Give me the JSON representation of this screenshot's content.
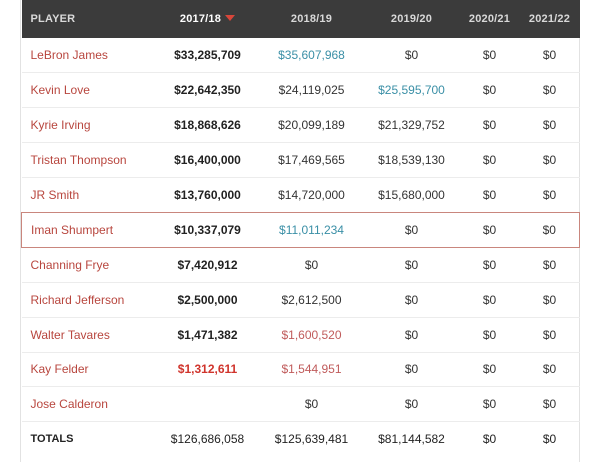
{
  "headers": {
    "player": "PLAYER",
    "y1": "2017/18",
    "y2": "2018/19",
    "y3": "2019/20",
    "y4": "2020/21",
    "y5": "2021/22"
  },
  "colors": {
    "header_bg": "#3b3b3b",
    "player_name": "#b8463e",
    "option_teal": "#3a8fa6",
    "option_pink": "#c05b5b",
    "highlight_border": "#c9867d"
  },
  "rows": [
    {
      "player": "LeBron James",
      "y1": "$33,285,709",
      "y2": "$35,607,968",
      "y3": "$0",
      "y4": "$0",
      "y5": "$0"
    },
    {
      "player": "Kevin Love",
      "y1": "$22,642,350",
      "y2": "$24,119,025",
      "y3": "$25,595,700",
      "y4": "$0",
      "y5": "$0"
    },
    {
      "player": "Kyrie Irving",
      "y1": "$18,868,626",
      "y2": "$20,099,189",
      "y3": "$21,329,752",
      "y4": "$0",
      "y5": "$0"
    },
    {
      "player": "Tristan Thompson",
      "y1": "$16,400,000",
      "y2": "$17,469,565",
      "y3": "$18,539,130",
      "y4": "$0",
      "y5": "$0"
    },
    {
      "player": "JR Smith",
      "y1": "$13,760,000",
      "y2": "$14,720,000",
      "y3": "$15,680,000",
      "y4": "$0",
      "y5": "$0"
    },
    {
      "player": "Iman Shumpert",
      "y1": "$10,337,079",
      "y2": "$11,011,234",
      "y3": "$0",
      "y4": "$0",
      "y5": "$0"
    },
    {
      "player": "Channing Frye",
      "y1": "$7,420,912",
      "y2": "$0",
      "y3": "$0",
      "y4": "$0",
      "y5": "$0"
    },
    {
      "player": "Richard Jefferson",
      "y1": "$2,500,000",
      "y2": "$2,612,500",
      "y3": "$0",
      "y4": "$0",
      "y5": "$0"
    },
    {
      "player": "Walter Tavares",
      "y1": "$1,471,382",
      "y2": "$1,600,520",
      "y3": "$0",
      "y4": "$0",
      "y5": "$0"
    },
    {
      "player": "Kay Felder",
      "y1": "$1,312,611",
      "y2": "$1,544,951",
      "y3": "$0",
      "y4": "$0",
      "y5": "$0"
    },
    {
      "player": "Jose Calderon",
      "y1": "",
      "y2": "$0",
      "y3": "$0",
      "y4": "$0",
      "y5": "$0"
    }
  ],
  "totals": {
    "label": "TOTALS",
    "y1": "$126,686,058",
    "y2": "$125,639,481",
    "y3": "$81,144,582",
    "y4": "$0",
    "y5": "$0"
  }
}
